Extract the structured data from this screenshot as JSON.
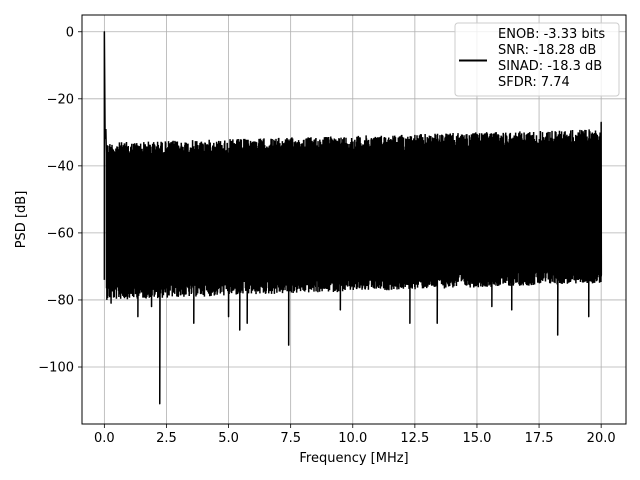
{
  "chart_data": {
    "type": "line",
    "title": "",
    "xlabel": "Frequency [MHz]",
    "ylabel": "PSD [dB]",
    "xlim": [
      -0.9,
      21.0
    ],
    "ylim": [
      -117,
      5
    ],
    "xticks": [
      0.0,
      2.5,
      5.0,
      7.5,
      10.0,
      12.5,
      15.0,
      17.5,
      20.0
    ],
    "xtick_labels": [
      "0.0",
      "2.5",
      "5.0",
      "7.5",
      "10.0",
      "12.5",
      "15.0",
      "17.5",
      "20.0"
    ],
    "yticks": [
      0,
      -20,
      -40,
      -60,
      -80,
      -100
    ],
    "ytick_labels": [
      "0",
      "−20",
      "−40",
      "−60",
      "−80",
      "−100"
    ],
    "grid": true,
    "legend_position": "top-right",
    "legend_lines": [
      "ENOB: -3.33 bits",
      "SNR: -18.28 dB",
      "SINAD: -18.3 dB",
      "SFDR: 7.74"
    ],
    "series": [
      {
        "color": "#000000",
        "noise_floor": {
          "x_range": [
            0.08,
            20.0
          ],
          "upper_envelope_db": [
            -33,
            -29
          ],
          "lower_envelope_db": [
            -75,
            -70
          ]
        },
        "peaks": [
          {
            "x": 0.0,
            "y": 0.0
          },
          {
            "x": 20.0,
            "y": -27.0
          }
        ],
        "notches": [
          {
            "x": 0.13,
            "y": -75
          },
          {
            "x": 0.27,
            "y": -81
          },
          {
            "x": 1.35,
            "y": -85
          },
          {
            "x": 1.9,
            "y": -82
          },
          {
            "x": 2.23,
            "y": -111
          },
          {
            "x": 3.6,
            "y": -87
          },
          {
            "x": 5.0,
            "y": -85
          },
          {
            "x": 5.45,
            "y": -89
          },
          {
            "x": 5.75,
            "y": -87
          },
          {
            "x": 7.42,
            "y": -93.5
          },
          {
            "x": 9.5,
            "y": -83
          },
          {
            "x": 12.3,
            "y": -87
          },
          {
            "x": 13.4,
            "y": -87
          },
          {
            "x": 15.6,
            "y": -82
          },
          {
            "x": 16.4,
            "y": -83
          },
          {
            "x": 18.25,
            "y": -90.5
          },
          {
            "x": 19.5,
            "y": -85
          }
        ]
      }
    ]
  }
}
